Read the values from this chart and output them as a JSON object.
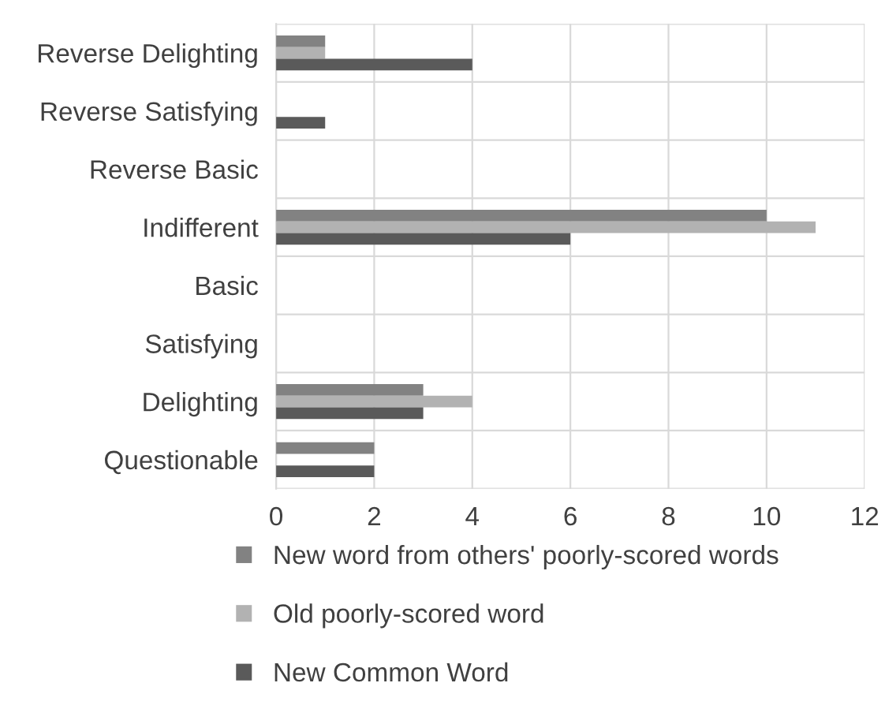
{
  "chart_data": {
    "type": "bar",
    "orientation": "horizontal",
    "categories": [
      "Reverse Delighting",
      "Reverse Satisfying",
      "Reverse Basic",
      "Indifferent",
      "Basic",
      "Satisfying",
      "Delighting",
      "Questionable"
    ],
    "series": [
      {
        "name": "New word from others' poorly-scored words",
        "color": "#828282",
        "values": [
          1,
          0,
          0,
          10,
          0,
          0,
          3,
          2
        ]
      },
      {
        "name": "Old poorly-scored word",
        "color": "#b2b2b2",
        "values": [
          1,
          0,
          0,
          11,
          0,
          0,
          4,
          0
        ]
      },
      {
        "name": "New Common Word",
        "color": "#5a5a5a",
        "values": [
          4,
          1,
          0,
          6,
          0,
          0,
          3,
          2
        ]
      }
    ],
    "xlim": [
      0,
      12
    ],
    "xticks": [
      0,
      2,
      4,
      6,
      8,
      10,
      12
    ],
    "grid": true,
    "legend": "bottom"
  }
}
